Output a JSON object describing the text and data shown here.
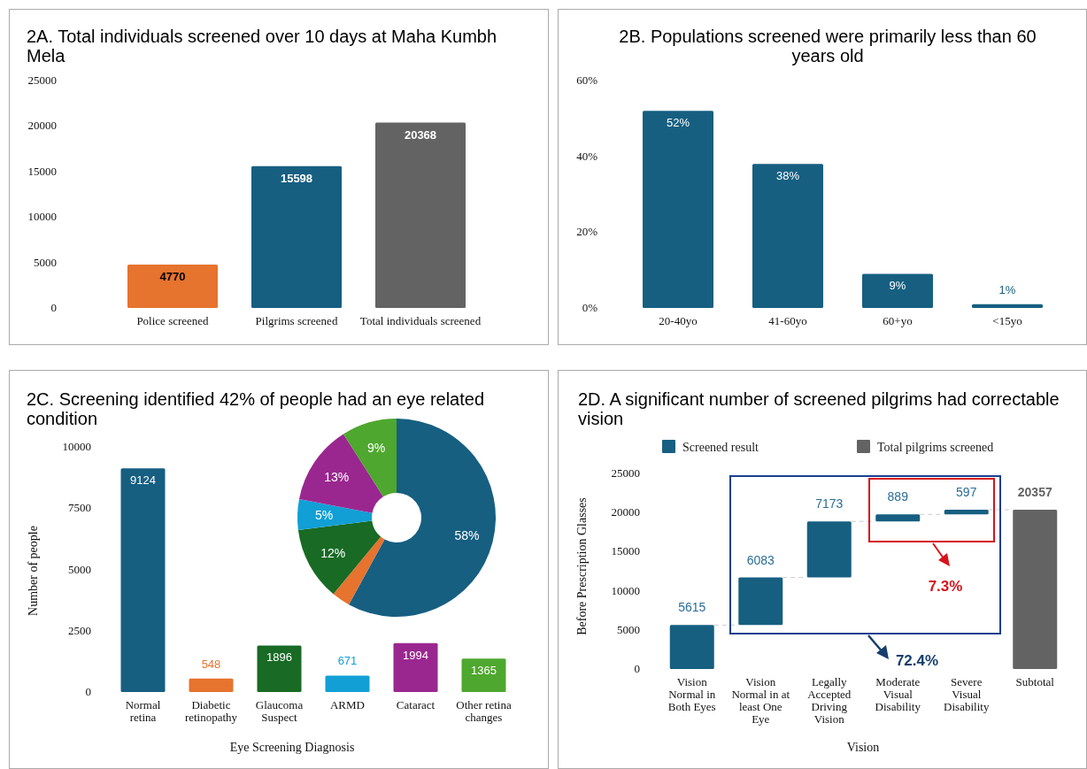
{
  "chart_data": [
    {
      "type": "bar",
      "title": "2A. Total individuals screened over 10 days at Maha Kumbh Mela",
      "categories": [
        "Police screened",
        "Pilgrims screened",
        "Total individuals screened"
      ],
      "values": [
        4770,
        15598,
        20368
      ],
      "colors": [
        "#e6732e",
        "#165f81",
        "#636363"
      ],
      "ylim": [
        0,
        25000
      ],
      "yticks": [
        0,
        5000,
        10000,
        15000,
        20000,
        25000
      ],
      "data_labels": true
    },
    {
      "type": "bar",
      "title": "2B. Populations screened were primarily less than 60 years old",
      "categories": [
        "20-40yo",
        "41-60yo",
        "60+yo",
        "<15yo"
      ],
      "values": [
        52,
        38,
        9,
        1
      ],
      "color": "#165f81",
      "value_labels": [
        "52%",
        "38%",
        "9%",
        "1%"
      ],
      "ylim": [
        0,
        60
      ],
      "yticks": [
        {
          "value": 0,
          "label": "0%"
        },
        {
          "value": 20,
          "label": "20%"
        },
        {
          "value": 40,
          "label": "40%"
        },
        {
          "value": 60,
          "label": "60%"
        }
      ]
    },
    {
      "type": "bar",
      "title": "2C. Screening identified 42% of people had an eye related condition",
      "xlabel": "Eye Screening Diagnosis",
      "ylabel": "Number of people",
      "categories": [
        "Normal retina",
        "Diabetic retinopathy",
        "Glaucoma Suspect",
        "ARMD",
        "Cataract",
        "Other retina changes"
      ],
      "values": [
        9124,
        548,
        1896,
        671,
        1994,
        1365
      ],
      "colors": [
        "#165f81",
        "#e6732e",
        "#186a24",
        "#119fd6",
        "#9a278f",
        "#4ea72e"
      ],
      "ylim": [
        0,
        10000
      ],
      "yticks": [
        0,
        2500,
        5000,
        7500,
        10000
      ],
      "data_labels": true
    },
    {
      "type": "donut",
      "categories": [
        null,
        null,
        null,
        null,
        null,
        null
      ],
      "values": [
        58,
        3,
        12,
        5,
        13,
        9
      ],
      "colors": [
        "#165f81",
        "#e6732e",
        "#186a24",
        "#119fd6",
        "#9a278f",
        "#4ea72e"
      ],
      "value_labels": [
        "58%",
        null,
        "12%",
        "5%",
        "13%",
        "9%"
      ]
    },
    {
      "type": "bar",
      "title": "2D. A significant number of screened pilgrims had correctable vision",
      "xlabel": "Vision",
      "ylabel": "Before Prescription Glasses",
      "categories": [
        "Vision Normal in Both Eyes",
        "Vision Normal in at least One Eye",
        "Legally Accepted Driving Vision",
        "Moderate Visual Disability",
        "Severe Visual Disability",
        "Subtotal"
      ],
      "series": [
        {
          "name": "Screened result",
          "color": "#165f81",
          "values": [
            5615,
            6083,
            7173,
            889,
            597,
            null
          ],
          "base": [
            0,
            5615,
            11698,
            18871,
            19760,
            null
          ]
        },
        {
          "name": "Total pilgrims screened",
          "color": "#636363",
          "values": [
            null,
            null,
            null,
            null,
            null,
            20357
          ]
        }
      ],
      "ylim": [
        0,
        25000
      ],
      "yticks": [
        0,
        5000,
        10000,
        15000,
        20000,
        25000
      ],
      "data_labels": true,
      "legend": "top",
      "annotations": [
        "7.3%",
        "72.4%"
      ]
    }
  ]
}
